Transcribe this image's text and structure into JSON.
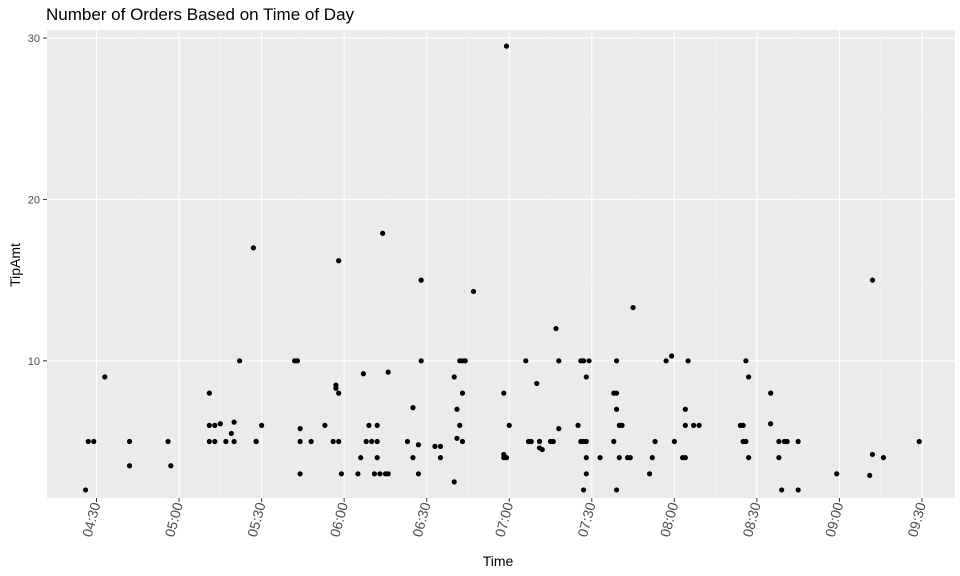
{
  "chart_data": {
    "type": "scatter",
    "title": "Number of Orders Based on Time of Day",
    "xlabel": "Time",
    "ylabel": "TipAmt",
    "x_unit": "time of day (HH:MM)",
    "xlim": [
      "04:12",
      "09:42"
    ],
    "ylim": [
      1.5,
      30.5
    ],
    "x_ticks": [
      "04:30",
      "05:00",
      "05:30",
      "06:00",
      "06:30",
      "07:00",
      "07:30",
      "08:00",
      "08:30",
      "09:00",
      "09:30"
    ],
    "y_ticks": [
      10,
      20,
      30
    ],
    "grid": true,
    "legend": "none",
    "colors": {
      "panel_background": "#ebebeb",
      "major_grid": "#ffffff",
      "minor_grid": "#f5f5f5",
      "points": "#000000",
      "tick_text": "#4d4d4d"
    },
    "points": [
      {
        "x": "04:26",
        "y": 2.0
      },
      {
        "x": "04:27",
        "y": 5.0
      },
      {
        "x": "04:29",
        "y": 5.0
      },
      {
        "x": "04:33",
        "y": 9.0
      },
      {
        "x": "04:42",
        "y": 5.0
      },
      {
        "x": "04:42",
        "y": 3.5
      },
      {
        "x": "04:56",
        "y": 5.0
      },
      {
        "x": "04:57",
        "y": 3.5
      },
      {
        "x": "05:11",
        "y": 8.0
      },
      {
        "x": "05:11",
        "y": 6.0
      },
      {
        "x": "05:11",
        "y": 5.0
      },
      {
        "x": "05:13",
        "y": 6.0
      },
      {
        "x": "05:13",
        "y": 5.0
      },
      {
        "x": "05:15",
        "y": 6.1
      },
      {
        "x": "05:17",
        "y": 5.0
      },
      {
        "x": "05:19",
        "y": 5.5
      },
      {
        "x": "05:20",
        "y": 6.2
      },
      {
        "x": "05:20",
        "y": 5.0
      },
      {
        "x": "05:22",
        "y": 10.0
      },
      {
        "x": "05:27",
        "y": 17.0
      },
      {
        "x": "05:28",
        "y": 5.0
      },
      {
        "x": "05:28",
        "y": 5.0
      },
      {
        "x": "05:30",
        "y": 6.0
      },
      {
        "x": "05:42",
        "y": 10.0
      },
      {
        "x": "05:43",
        "y": 10.0
      },
      {
        "x": "05:44",
        "y": 5.8
      },
      {
        "x": "05:44",
        "y": 5.0
      },
      {
        "x": "05:44",
        "y": 3.0
      },
      {
        "x": "05:48",
        "y": 5.0
      },
      {
        "x": "05:53",
        "y": 6.0
      },
      {
        "x": "05:56",
        "y": 5.0
      },
      {
        "x": "05:57",
        "y": 8.3
      },
      {
        "x": "05:57",
        "y": 8.5
      },
      {
        "x": "05:58",
        "y": 16.2
      },
      {
        "x": "05:58",
        "y": 8.0
      },
      {
        "x": "05:58",
        "y": 5.0
      },
      {
        "x": "05:59",
        "y": 3.0
      },
      {
        "x": "06:05",
        "y": 3.0
      },
      {
        "x": "06:06",
        "y": 4.0
      },
      {
        "x": "06:07",
        "y": 9.2
      },
      {
        "x": "06:08",
        "y": 5.0
      },
      {
        "x": "06:09",
        "y": 6.0
      },
      {
        "x": "06:10",
        "y": 5.0
      },
      {
        "x": "06:11",
        "y": 3.0
      },
      {
        "x": "06:12",
        "y": 6.0
      },
      {
        "x": "06:12",
        "y": 4.0
      },
      {
        "x": "06:12",
        "y": 5.0
      },
      {
        "x": "06:13",
        "y": 3.0
      },
      {
        "x": "06:14",
        "y": 17.9
      },
      {
        "x": "06:15",
        "y": 3.0
      },
      {
        "x": "06:16",
        "y": 3.0
      },
      {
        "x": "06:16",
        "y": 9.3
      },
      {
        "x": "06:23",
        "y": 5.0
      },
      {
        "x": "06:25",
        "y": 4.0
      },
      {
        "x": "06:25",
        "y": 7.1
      },
      {
        "x": "06:27",
        "y": 4.8
      },
      {
        "x": "06:27",
        "y": 3.0
      },
      {
        "x": "06:28",
        "y": 10.0
      },
      {
        "x": "06:28",
        "y": 15.0
      },
      {
        "x": "06:33",
        "y": 4.7
      },
      {
        "x": "06:35",
        "y": 4.7
      },
      {
        "x": "06:35",
        "y": 4.0
      },
      {
        "x": "06:40",
        "y": 2.5
      },
      {
        "x": "06:40",
        "y": 9.0
      },
      {
        "x": "06:41",
        "y": 7.0
      },
      {
        "x": "06:41",
        "y": 5.2
      },
      {
        "x": "06:42",
        "y": 6.0
      },
      {
        "x": "06:42",
        "y": 10.0
      },
      {
        "x": "06:43",
        "y": 8.0
      },
      {
        "x": "06:43",
        "y": 5.0
      },
      {
        "x": "06:43",
        "y": 10.0
      },
      {
        "x": "06:44",
        "y": 10.0
      },
      {
        "x": "06:47",
        "y": 14.3
      },
      {
        "x": "06:58",
        "y": 4.0
      },
      {
        "x": "06:58",
        "y": 8.0
      },
      {
        "x": "06:58",
        "y": 4.2
      },
      {
        "x": "06:59",
        "y": 29.5
      },
      {
        "x": "06:59",
        "y": 4.0
      },
      {
        "x": "07:00",
        "y": 6.0
      },
      {
        "x": "07:06",
        "y": 10.0
      },
      {
        "x": "07:07",
        "y": 5.0
      },
      {
        "x": "07:08",
        "y": 5.0
      },
      {
        "x": "07:10",
        "y": 8.6
      },
      {
        "x": "07:11",
        "y": 5.0
      },
      {
        "x": "07:11",
        "y": 4.6
      },
      {
        "x": "07:12",
        "y": 4.5
      },
      {
        "x": "07:15",
        "y": 5.0
      },
      {
        "x": "07:16",
        "y": 5.0
      },
      {
        "x": "07:17",
        "y": 12.0
      },
      {
        "x": "07:18",
        "y": 5.8
      },
      {
        "x": "07:18",
        "y": 10.0
      },
      {
        "x": "07:25",
        "y": 6.0
      },
      {
        "x": "07:26",
        "y": 5.0
      },
      {
        "x": "07:26",
        "y": 10.0
      },
      {
        "x": "07:27",
        "y": 2.0
      },
      {
        "x": "07:27",
        "y": 10.0
      },
      {
        "x": "07:27",
        "y": 5.0
      },
      {
        "x": "07:28",
        "y": 4.0
      },
      {
        "x": "07:28",
        "y": 5.0
      },
      {
        "x": "07:28",
        "y": 3.0
      },
      {
        "x": "07:28",
        "y": 9.0
      },
      {
        "x": "07:29",
        "y": 10.0
      },
      {
        "x": "07:33",
        "y": 4.0
      },
      {
        "x": "07:38",
        "y": 8.0
      },
      {
        "x": "07:38",
        "y": 5.0
      },
      {
        "x": "07:39",
        "y": 10.0
      },
      {
        "x": "07:39",
        "y": 7.0
      },
      {
        "x": "07:39",
        "y": 8.0
      },
      {
        "x": "07:39",
        "y": 2.0
      },
      {
        "x": "07:40",
        "y": 6.0
      },
      {
        "x": "07:40",
        "y": 4.0
      },
      {
        "x": "07:41",
        "y": 6.0
      },
      {
        "x": "07:43",
        "y": 4.0
      },
      {
        "x": "07:44",
        "y": 4.0
      },
      {
        "x": "07:45",
        "y": 13.3
      },
      {
        "x": "07:51",
        "y": 3.0
      },
      {
        "x": "07:52",
        "y": 4.0
      },
      {
        "x": "07:53",
        "y": 5.0
      },
      {
        "x": "07:57",
        "y": 10.0
      },
      {
        "x": "07:59",
        "y": 10.3
      },
      {
        "x": "08:00",
        "y": 5.0
      },
      {
        "x": "08:03",
        "y": 4.0
      },
      {
        "x": "08:04",
        "y": 4.0
      },
      {
        "x": "08:04",
        "y": 7.0
      },
      {
        "x": "08:04",
        "y": 6.0
      },
      {
        "x": "08:05",
        "y": 10.0
      },
      {
        "x": "08:07",
        "y": 6.0
      },
      {
        "x": "08:09",
        "y": 6.0
      },
      {
        "x": "08:24",
        "y": 6.0
      },
      {
        "x": "08:25",
        "y": 6.0
      },
      {
        "x": "08:25",
        "y": 5.0
      },
      {
        "x": "08:26",
        "y": 10.0
      },
      {
        "x": "08:26",
        "y": 5.0
      },
      {
        "x": "08:27",
        "y": 4.0
      },
      {
        "x": "08:27",
        "y": 9.0
      },
      {
        "x": "08:35",
        "y": 6.1
      },
      {
        "x": "08:35",
        "y": 8.0
      },
      {
        "x": "08:38",
        "y": 4.0
      },
      {
        "x": "08:38",
        "y": 5.0
      },
      {
        "x": "08:39",
        "y": 2.0
      },
      {
        "x": "08:40",
        "y": 5.0
      },
      {
        "x": "08:41",
        "y": 5.0
      },
      {
        "x": "08:45",
        "y": 5.0
      },
      {
        "x": "08:45",
        "y": 2.0
      },
      {
        "x": "08:59",
        "y": 3.0
      },
      {
        "x": "09:11",
        "y": 2.9
      },
      {
        "x": "09:12",
        "y": 15.0
      },
      {
        "x": "09:12",
        "y": 4.2
      },
      {
        "x": "09:16",
        "y": 4.0
      },
      {
        "x": "09:29",
        "y": 5.0
      }
    ]
  }
}
